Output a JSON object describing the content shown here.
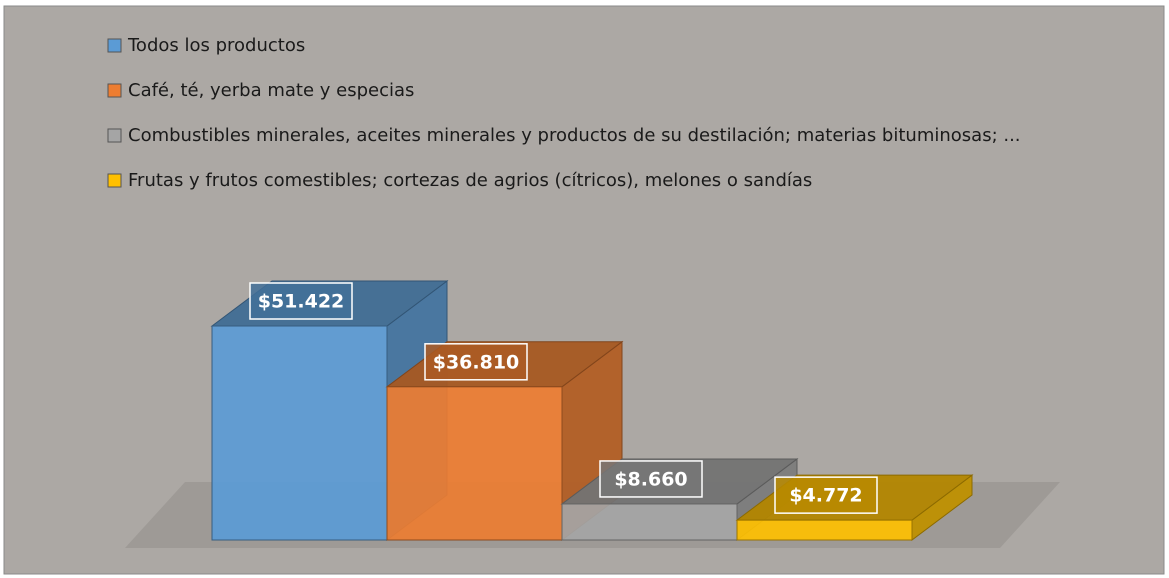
{
  "chart_data": {
    "type": "bar3d",
    "series": [
      {
        "name": "Todos los productos",
        "color": "#5b9bd5",
        "values": [
          51422
        ],
        "value_labels": [
          "$51.422"
        ]
      },
      {
        "name": "Café, té, yerba mate y especias",
        "color": "#ed7d31",
        "values": [
          36810
        ],
        "value_labels": [
          "$36.810"
        ]
      },
      {
        "name": "Combustibles minerales, aceites minerales y productos de su destilación; materias bituminosas; ...",
        "color": "#a5a5a5",
        "values": [
          8660
        ],
        "value_labels": [
          "$8.660"
        ]
      },
      {
        "name": "Frutas y frutos comestibles; cortezas de agrios (cítricos), melones o sandías",
        "color": "#ffc000",
        "values": [
          4772
        ],
        "value_labels": [
          "$4.772"
        ]
      }
    ],
    "legend": "top"
  }
}
